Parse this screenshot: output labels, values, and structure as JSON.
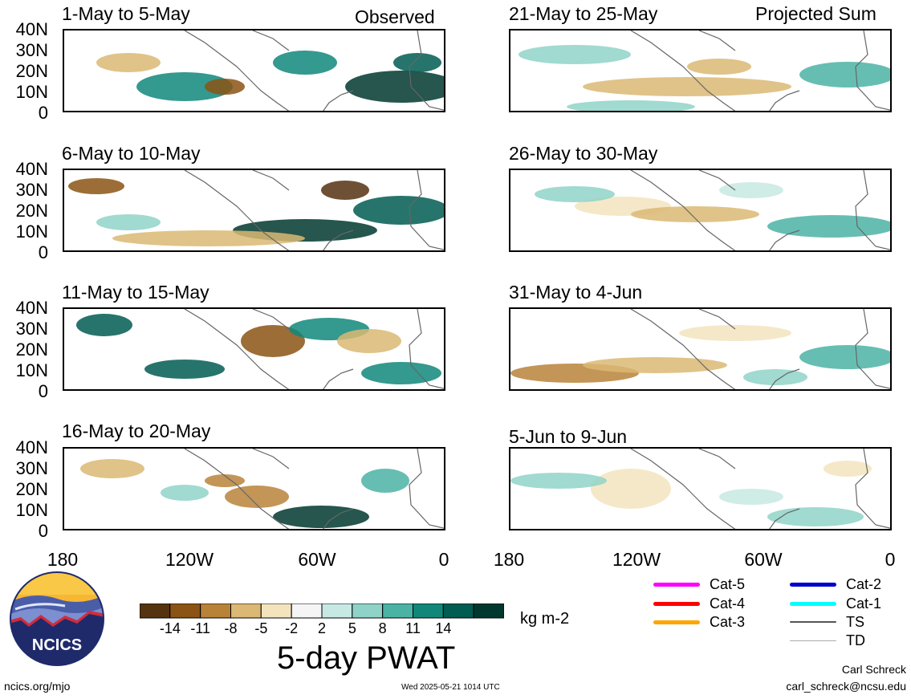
{
  "column_labels": {
    "left": "Observed",
    "right": "Projected Sum"
  },
  "panels": [
    {
      "title": "1-May to 5-May",
      "column": "left",
      "row": 0
    },
    {
      "title": "6-May to 10-May",
      "column": "left",
      "row": 1
    },
    {
      "title": "11-May to 15-May",
      "column": "left",
      "row": 2
    },
    {
      "title": "16-May to 20-May",
      "column": "left",
      "row": 3
    },
    {
      "title": "21-May to 25-May",
      "column": "right",
      "row": 0
    },
    {
      "title": "26-May to 30-May",
      "column": "right",
      "row": 1
    },
    {
      "title": "31-May to 4-Jun",
      "column": "right",
      "row": 2
    },
    {
      "title": "5-Jun to 9-Jun",
      "column": "right",
      "row": 3
    }
  ],
  "latitude_labels": [
    "40N",
    "30N",
    "20N",
    "10N",
    "0"
  ],
  "longitude_labels": [
    "180",
    "120W",
    "60W",
    "0"
  ],
  "colorbar": {
    "ticks": [
      "-14",
      "-11",
      "-8",
      "-5",
      "-2",
      "2",
      "5",
      "8",
      "11",
      "14"
    ],
    "colors": [
      "#553311",
      "#8b5414",
      "#b98239",
      "#dbb873",
      "#f3e4be",
      "#f5f5f5",
      "#c7e9e3",
      "#8fd3c8",
      "#4bb3a4",
      "#11877a",
      "#015c52",
      "#00382f"
    ],
    "units": "kg m-2",
    "title": "5-day PWAT"
  },
  "legend": [
    {
      "label": "Cat-5",
      "color": "#ff00ff"
    },
    {
      "label": "Cat-4",
      "color": "#ff0000"
    },
    {
      "label": "Cat-3",
      "color": "#ffa500"
    },
    {
      "label": "Cat-2",
      "color": "#0000cd"
    },
    {
      "label": "Cat-1",
      "color": "#00ffff"
    },
    {
      "label": "TS",
      "color": "#555555"
    },
    {
      "label": "TD",
      "color": "#aaaaaa"
    }
  ],
  "logo_text": "NCICS",
  "footer": {
    "site": "ncics.org/mjo",
    "timestamp": "Wed 2025-05-21 1014 UTC",
    "author": "Carl Schreck",
    "email": "carl_schreck@ncsu.edu"
  }
}
